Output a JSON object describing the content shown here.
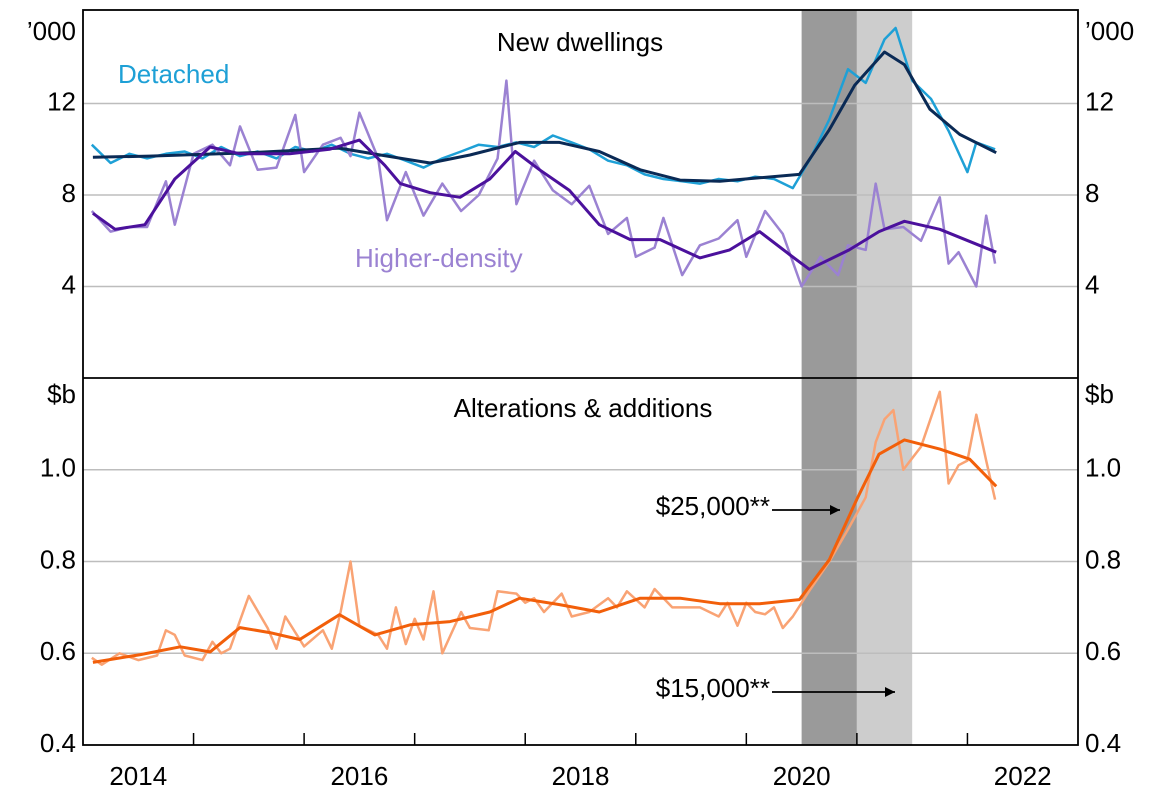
{
  "chart_data": [
    {
      "type": "line",
      "title": "New dwellings",
      "unit": "’000",
      "xlim": [
        2014,
        2023
      ],
      "ylim": [
        0,
        16
      ],
      "yticks": [
        4,
        8,
        12
      ],
      "grid": true,
      "series": [
        {
          "name": "Detached",
          "color": "#1ea0d6",
          "trend_color": "#0a2a55",
          "x": [
            2014.08,
            2014.25,
            2014.42,
            2014.58,
            2014.75,
            2014.92,
            2015.08,
            2015.25,
            2015.42,
            2015.58,
            2015.75,
            2015.92,
            2016.08,
            2016.25,
            2016.42,
            2016.58,
            2016.75,
            2016.92,
            2017.08,
            2017.25,
            2017.42,
            2017.58,
            2017.75,
            2017.92,
            2018.08,
            2018.25,
            2018.42,
            2018.58,
            2018.75,
            2018.92,
            2019.08,
            2019.25,
            2019.42,
            2019.58,
            2019.75,
            2019.92,
            2020.08,
            2020.25,
            2020.42,
            2020.58,
            2020.75,
            2020.92,
            2021.08,
            2021.25,
            2021.35,
            2021.5,
            2021.67,
            2021.83,
            2022.0,
            2022.08,
            2022.25
          ],
          "values": [
            10.2,
            9.4,
            9.8,
            9.6,
            9.8,
            9.9,
            9.6,
            10.1,
            9.7,
            9.9,
            9.6,
            10.1,
            9.9,
            10.2,
            9.8,
            9.6,
            9.8,
            9.5,
            9.2,
            9.6,
            9.9,
            10.2,
            10.1,
            10.3,
            10.1,
            10.6,
            10.3,
            10.0,
            9.5,
            9.3,
            8.9,
            8.7,
            8.6,
            8.5,
            8.7,
            8.6,
            8.8,
            8.7,
            8.3,
            9.6,
            11.3,
            13.5,
            12.9,
            14.8,
            15.3,
            13.0,
            12.2,
            10.8,
            9.0,
            10.3,
            10.0
          ],
          "trend_x": [
            2014.09,
            2014.6,
            2015.51,
            2016.32,
            2016.69,
            2017.14,
            2017.5,
            2017.95,
            2018.31,
            2018.67,
            2019.04,
            2019.4,
            2019.76,
            2020.12,
            2020.48,
            2020.75,
            2020.98,
            2021.25,
            2021.43,
            2021.66,
            2021.93,
            2022.26
          ],
          "trend": [
            9.65,
            9.7,
            9.85,
            10.05,
            9.75,
            9.4,
            9.75,
            10.3,
            10.3,
            9.9,
            9.1,
            8.65,
            8.6,
            8.75,
            8.9,
            10.85,
            12.8,
            14.25,
            13.7,
            11.75,
            10.65,
            9.85
          ]
        },
        {
          "name": "Higher-density",
          "color": "#9b82d2",
          "trend_color": "#4b119c",
          "x": [
            2014.08,
            2014.25,
            2014.42,
            2014.58,
            2014.75,
            2014.83,
            2015.0,
            2015.17,
            2015.33,
            2015.42,
            2015.58,
            2015.75,
            2015.92,
            2016.0,
            2016.17,
            2016.33,
            2016.42,
            2016.5,
            2016.67,
            2016.75,
            2016.92,
            2017.08,
            2017.25,
            2017.42,
            2017.58,
            2017.75,
            2017.83,
            2017.92,
            2018.08,
            2018.25,
            2018.42,
            2018.58,
            2018.75,
            2018.92,
            2019.0,
            2019.17,
            2019.25,
            2019.42,
            2019.58,
            2019.75,
            2019.92,
            2020.0,
            2020.17,
            2020.33,
            2020.5,
            2020.67,
            2020.83,
            2020.92,
            2021.08,
            2021.17,
            2021.25,
            2021.42,
            2021.58,
            2021.75,
            2021.83,
            2021.92,
            2022.08,
            2022.17,
            2022.25
          ],
          "values": [
            7.3,
            6.4,
            6.6,
            6.6,
            8.6,
            6.7,
            9.8,
            10.2,
            9.3,
            11.0,
            9.1,
            9.2,
            11.5,
            9.0,
            10.2,
            10.5,
            9.7,
            11.6,
            9.6,
            6.9,
            9.0,
            7.1,
            8.5,
            7.3,
            8.0,
            9.6,
            13.0,
            7.6,
            9.5,
            8.2,
            7.6,
            8.4,
            6.3,
            7.0,
            5.3,
            5.7,
            7.0,
            4.5,
            5.8,
            6.1,
            6.9,
            5.3,
            7.3,
            6.3,
            4.0,
            5.3,
            4.5,
            5.8,
            5.6,
            8.5,
            6.5,
            6.6,
            6.0,
            7.9,
            5.0,
            5.5,
            4.0,
            7.1,
            5.0
          ],
          "trend_x": [
            2014.09,
            2014.29,
            2014.56,
            2014.83,
            2015.15,
            2015.42,
            2015.87,
            2016.23,
            2016.5,
            2016.73,
            2016.87,
            2017.14,
            2017.41,
            2017.68,
            2017.91,
            2018.13,
            2018.4,
            2018.67,
            2018.95,
            2019.22,
            2019.58,
            2019.85,
            2020.12,
            2020.39,
            2020.57,
            2020.93,
            2021.2,
            2021.43,
            2021.75,
            2022.26
          ],
          "trend": [
            7.2,
            6.5,
            6.7,
            8.7,
            10.1,
            9.8,
            9.8,
            10.0,
            10.4,
            9.3,
            8.5,
            8.1,
            7.9,
            8.7,
            9.9,
            9.1,
            8.2,
            6.7,
            6.05,
            6.05,
            5.25,
            5.6,
            6.4,
            5.4,
            4.75,
            5.6,
            6.4,
            6.85,
            6.5,
            5.5
          ]
        }
      ]
    },
    {
      "type": "line",
      "title": "Alterations & additions",
      "unit": "$b",
      "xlim": [
        2014,
        2023
      ],
      "ylim": [
        0.4,
        1.2
      ],
      "yticks": [
        0.4,
        0.6,
        0.8,
        {
          "value": 1,
          "label": "1.0"
        }
      ],
      "grid": true,
      "xticks": [
        {
          "value": 2014.5,
          "label": "2014"
        },
        {
          "value": 2016.5,
          "label": "2016"
        },
        {
          "value": 2018.5,
          "label": "2018"
        },
        {
          "value": 2020.5,
          "label": "2020"
        },
        {
          "value": 2022.5,
          "label": "2022"
        }
      ],
      "xminor_ticks": [
        2015,
        2016,
        2017,
        2018,
        2019,
        2020,
        2021,
        2022
      ],
      "shading": [
        {
          "xlim": [
            2020.5,
            2021.0
          ],
          "color": "#9a9a9a"
        },
        {
          "xlim": [
            2021.0,
            2021.5
          ],
          "color": "#cdcdcd"
        }
      ],
      "annotations": [
        "$25,000**",
        "$15,000**"
      ],
      "series": [
        {
          "color": "#f9a374",
          "trend_color": "#f25f0a",
          "x": [
            2014.08,
            2014.17,
            2014.33,
            2014.5,
            2014.67,
            2014.75,
            2014.83,
            2014.92,
            2015.08,
            2015.17,
            2015.25,
            2015.33,
            2015.5,
            2015.67,
            2015.75,
            2015.83,
            2016.0,
            2016.17,
            2016.25,
            2016.33,
            2016.42,
            2016.5,
            2016.67,
            2016.75,
            2016.83,
            2016.92,
            2017.0,
            2017.08,
            2017.17,
            2017.25,
            2017.42,
            2017.5,
            2017.67,
            2017.75,
            2017.92,
            2018.0,
            2018.08,
            2018.17,
            2018.33,
            2018.42,
            2018.58,
            2018.75,
            2018.83,
            2018.92,
            2019.08,
            2019.17,
            2019.33,
            2019.42,
            2019.58,
            2019.75,
            2019.83,
            2019.92,
            2020.0,
            2020.08,
            2020.17,
            2020.25,
            2020.33,
            2020.42,
            2020.58,
            2020.75,
            2020.92,
            2021.08,
            2021.17,
            2021.25,
            2021.33,
            2021.42,
            2021.58,
            2021.75,
            2021.83,
            2021.92,
            2022.0,
            2022.08,
            2022.17,
            2022.25
          ],
          "values": [
            0.59,
            0.575,
            0.6,
            0.585,
            0.595,
            0.65,
            0.64,
            0.595,
            0.585,
            0.625,
            0.6,
            0.61,
            0.725,
            0.655,
            0.61,
            0.68,
            0.615,
            0.65,
            0.61,
            0.69,
            0.8,
            0.66,
            0.64,
            0.61,
            0.7,
            0.62,
            0.675,
            0.63,
            0.735,
            0.6,
            0.69,
            0.655,
            0.65,
            0.735,
            0.73,
            0.71,
            0.72,
            0.69,
            0.73,
            0.68,
            0.69,
            0.72,
            0.7,
            0.735,
            0.7,
            0.74,
            0.7,
            0.7,
            0.7,
            0.68,
            0.71,
            0.66,
            0.71,
            0.69,
            0.685,
            0.7,
            0.655,
            0.68,
            0.74,
            0.8,
            0.87,
            0.94,
            1.06,
            1.11,
            1.13,
            1.0,
            1.05,
            1.17,
            0.97,
            1.01,
            1.02,
            1.12,
            1.02,
            0.935
          ],
          "trend_x": [
            2014.09,
            2014.52,
            2014.88,
            2015.15,
            2015.42,
            2015.69,
            2015.96,
            2016.32,
            2016.64,
            2016.96,
            2017.32,
            2017.68,
            2017.95,
            2018.31,
            2018.67,
            2019.04,
            2019.4,
            2019.76,
            2020.12,
            2020.48,
            2020.75,
            2021.0,
            2021.2,
            2021.43,
            2021.75,
            2022.02,
            2022.26
          ],
          "trend": [
            0.58,
            0.597,
            0.614,
            0.603,
            0.656,
            0.645,
            0.63,
            0.684,
            0.64,
            0.662,
            0.669,
            0.69,
            0.72,
            0.706,
            0.69,
            0.72,
            0.72,
            0.708,
            0.708,
            0.717,
            0.804,
            0.936,
            1.034,
            1.065,
            1.045,
            1.023,
            0.964
          ]
        }
      ]
    }
  ]
}
